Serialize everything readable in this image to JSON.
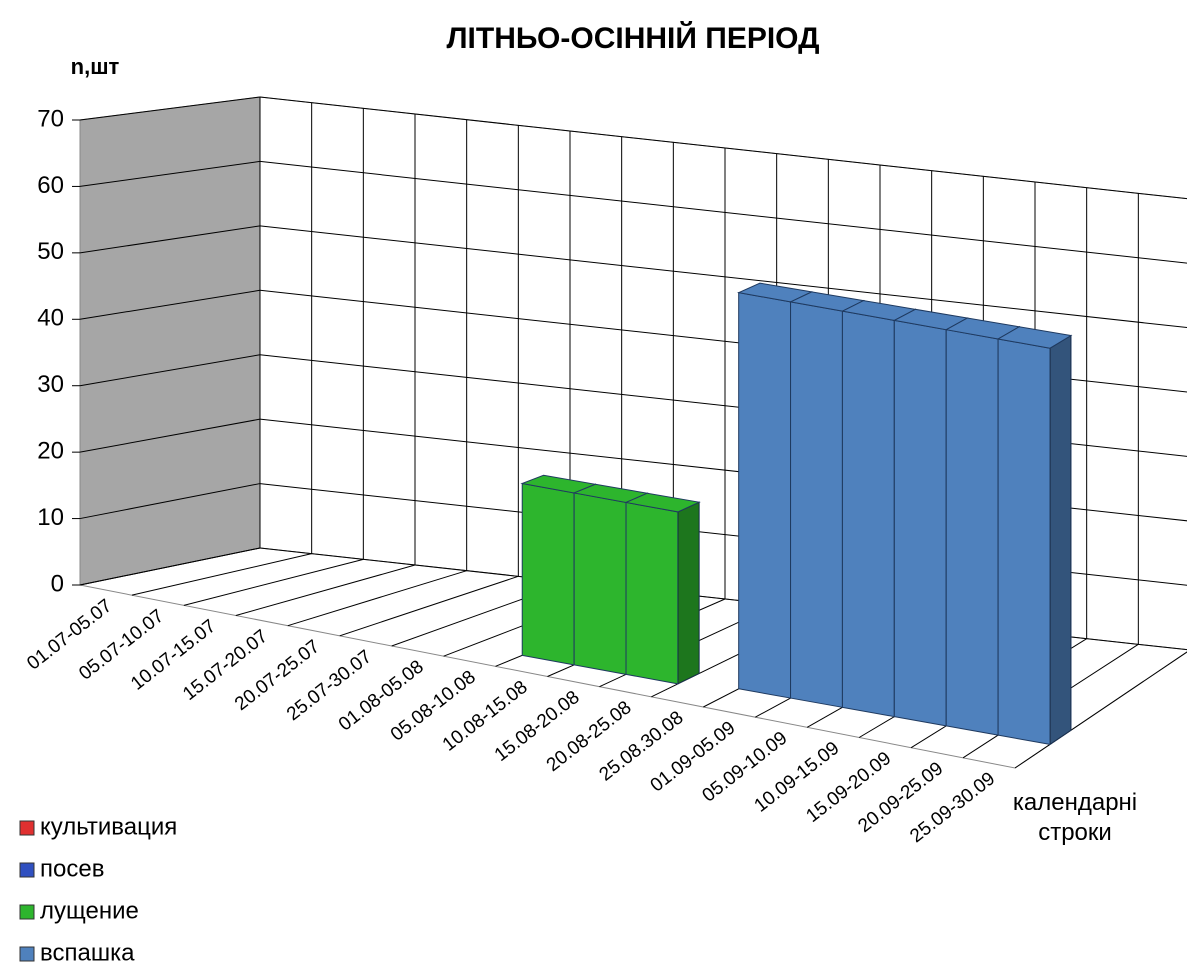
{
  "chart_data": {
    "type": "bar3d",
    "title": "ЛІТНЬО-ОСІННІЙ ПЕРІОД",
    "y_label": "n,шт",
    "x_label": "календарні строки",
    "categories": [
      "01.07-05.07",
      "05.07-10.07",
      "10.07-15.07",
      "15.07-20.07",
      "20.07-25.07",
      "25.07-30.07",
      "01.08-05.08",
      "05.08-10.08",
      "10.08-15.08",
      "15.08-20.08",
      "20.08-25.08",
      "25.08.30.08",
      "01.09-05.09",
      "05.09-10.09",
      "10.09-15.09",
      "15.09-20.09",
      "20.09-25.09",
      "25.09-30.09"
    ],
    "series": [
      {
        "name": "культивация",
        "color": "#e03030",
        "values": [
          null,
          null,
          null,
          null,
          null,
          null,
          null,
          null,
          null,
          null,
          null,
          null,
          null,
          null,
          null,
          null,
          null,
          null
        ]
      },
      {
        "name": "посев",
        "color": "#3050c0",
        "values": [
          null,
          null,
          null,
          null,
          null,
          null,
          null,
          null,
          null,
          null,
          null,
          null,
          null,
          null,
          null,
          null,
          null,
          null
        ]
      },
      {
        "name": "лущение",
        "color": "#2db52d",
        "values": [
          null,
          null,
          null,
          null,
          null,
          null,
          null,
          null,
          26,
          26,
          26,
          null,
          null,
          null,
          null,
          null,
          null,
          null
        ]
      },
      {
        "name": "вспашка",
        "color": "#4f81bd",
        "values": [
          null,
          null,
          null,
          null,
          null,
          null,
          null,
          null,
          null,
          null,
          null,
          null,
          60,
          60,
          60,
          60,
          60,
          60
        ]
      }
    ],
    "ylim": [
      0,
      70
    ],
    "yticks": [
      0,
      10,
      20,
      30,
      40,
      50,
      60,
      70
    ],
    "grid": true
  }
}
